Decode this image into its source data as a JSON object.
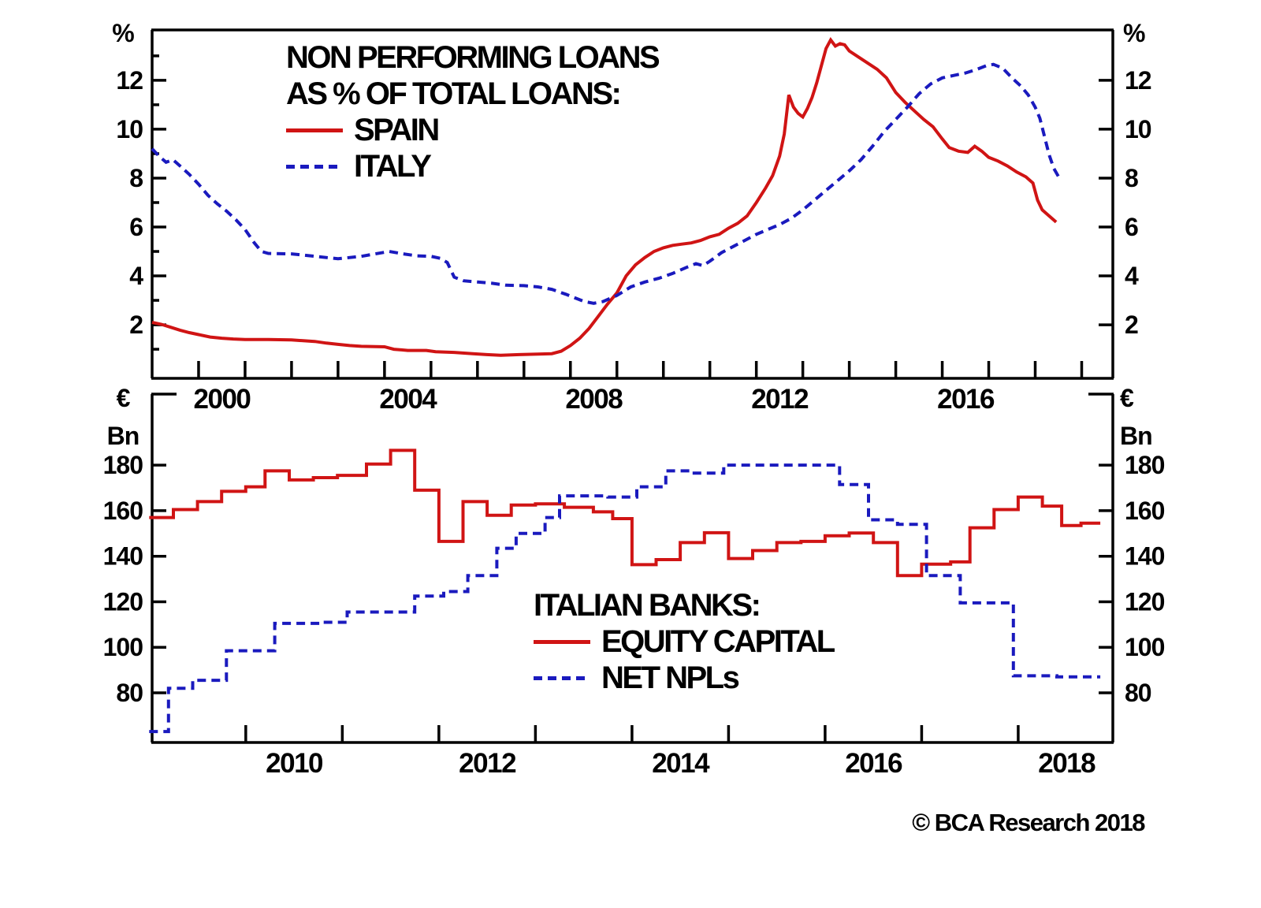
{
  "footer": {
    "copyright": "© BCA Research 2018"
  },
  "units": {
    "percent_left": "%",
    "percent_right": "%",
    "euro": "€",
    "bn": "Bn"
  },
  "colors": {
    "spain": "#d01414",
    "italy": "#1a1abe",
    "equity": "#d01414",
    "npl": "#1a1abe",
    "axis": "#000000"
  },
  "chart_data": [
    {
      "type": "line",
      "panel": "top",
      "title_lines": [
        "NON PERFORMING LOANS",
        "AS % OF TOTAL LOANS:"
      ],
      "ylabel_left": "%",
      "ylabel_right": "%",
      "x_range": [
        1999.0,
        2019.67
      ],
      "y_range": [
        -0.19,
        14.06
      ],
      "y_ticks_major": [
        2,
        4,
        6,
        8,
        10,
        12
      ],
      "y_ticks_minor": [
        1,
        3,
        5,
        7,
        9,
        11,
        13
      ],
      "x_ticks_start": 2000,
      "x_ticks_end": 2019,
      "x_label_years": [
        2000,
        2004,
        2008,
        2012,
        2016
      ],
      "legend_position": "top-left-inside",
      "grid": false,
      "series": [
        {
          "name": "SPAIN",
          "style": "solid",
          "color": "#d01414",
          "points": [
            [
              1999.0,
              2.1
            ],
            [
              1999.2,
              2.02
            ],
            [
              1999.4,
              1.9
            ],
            [
              1999.6,
              1.78
            ],
            [
              1999.8,
              1.68
            ],
            [
              2000.0,
              1.6
            ],
            [
              2000.25,
              1.5
            ],
            [
              2000.5,
              1.45
            ],
            [
              2000.75,
              1.42
            ],
            [
              2001.0,
              1.4
            ],
            [
              2001.5,
              1.4
            ],
            [
              2002.0,
              1.38
            ],
            [
              2002.5,
              1.32
            ],
            [
              2002.75,
              1.25
            ],
            [
              2003.0,
              1.2
            ],
            [
              2003.25,
              1.15
            ],
            [
              2003.5,
              1.12
            ],
            [
              2004.0,
              1.1
            ],
            [
              2004.2,
              1.0
            ],
            [
              2004.5,
              0.95
            ],
            [
              2004.9,
              0.95
            ],
            [
              2005.1,
              0.9
            ],
            [
              2005.5,
              0.87
            ],
            [
              2005.9,
              0.82
            ],
            [
              2006.2,
              0.78
            ],
            [
              2006.5,
              0.75
            ],
            [
              2006.9,
              0.78
            ],
            [
              2007.3,
              0.8
            ],
            [
              2007.6,
              0.82
            ],
            [
              2007.8,
              0.92
            ],
            [
              2008.0,
              1.15
            ],
            [
              2008.2,
              1.45
            ],
            [
              2008.4,
              1.85
            ],
            [
              2008.6,
              2.35
            ],
            [
              2008.8,
              2.85
            ],
            [
              2009.0,
              3.3
            ],
            [
              2009.2,
              4.0
            ],
            [
              2009.4,
              4.45
            ],
            [
              2009.6,
              4.75
            ],
            [
              2009.8,
              5.0
            ],
            [
              2010.0,
              5.15
            ],
            [
              2010.2,
              5.25
            ],
            [
              2010.4,
              5.3
            ],
            [
              2010.6,
              5.35
            ],
            [
              2010.8,
              5.45
            ],
            [
              2011.0,
              5.6
            ],
            [
              2011.2,
              5.7
            ],
            [
              2011.4,
              5.95
            ],
            [
              2011.6,
              6.15
            ],
            [
              2011.8,
              6.45
            ],
            [
              2012.0,
              7.0
            ],
            [
              2012.2,
              7.6
            ],
            [
              2012.35,
              8.1
            ],
            [
              2012.5,
              8.9
            ],
            [
              2012.6,
              9.8
            ],
            [
              2012.7,
              11.4
            ],
            [
              2012.8,
              10.9
            ],
            [
              2012.9,
              10.65
            ],
            [
              2013.0,
              10.5
            ],
            [
              2013.1,
              10.85
            ],
            [
              2013.2,
              11.3
            ],
            [
              2013.3,
              11.9
            ],
            [
              2013.4,
              12.6
            ],
            [
              2013.5,
              13.3
            ],
            [
              2013.6,
              13.65
            ],
            [
              2013.7,
              13.4
            ],
            [
              2013.8,
              13.5
            ],
            [
              2013.9,
              13.45
            ],
            [
              2014.0,
              13.2
            ],
            [
              2014.2,
              12.95
            ],
            [
              2014.4,
              12.7
            ],
            [
              2014.6,
              12.45
            ],
            [
              2014.8,
              12.1
            ],
            [
              2015.0,
              11.5
            ],
            [
              2015.2,
              11.1
            ],
            [
              2015.4,
              10.75
            ],
            [
              2015.6,
              10.4
            ],
            [
              2015.8,
              10.1
            ],
            [
              2016.0,
              9.6
            ],
            [
              2016.15,
              9.25
            ],
            [
              2016.35,
              9.1
            ],
            [
              2016.55,
              9.05
            ],
            [
              2016.7,
              9.3
            ],
            [
              2016.85,
              9.1
            ],
            [
              2017.0,
              8.85
            ],
            [
              2017.2,
              8.7
            ],
            [
              2017.4,
              8.5
            ],
            [
              2017.6,
              8.25
            ],
            [
              2017.8,
              8.05
            ],
            [
              2017.95,
              7.8
            ],
            [
              2018.05,
              7.1
            ],
            [
              2018.15,
              6.7
            ],
            [
              2018.3,
              6.45
            ],
            [
              2018.45,
              6.2
            ]
          ]
        },
        {
          "name": "ITALY",
          "style": "dashed",
          "color": "#1a1abe",
          "points": [
            [
              1999.0,
              9.2
            ],
            [
              1999.15,
              8.9
            ],
            [
              1999.3,
              8.65
            ],
            [
              1999.45,
              8.75
            ],
            [
              1999.6,
              8.5
            ],
            [
              1999.8,
              8.15
            ],
            [
              2000.0,
              7.75
            ],
            [
              2000.2,
              7.3
            ],
            [
              2000.4,
              6.95
            ],
            [
              2000.6,
              6.65
            ],
            [
              2000.8,
              6.3
            ],
            [
              2001.0,
              5.9
            ],
            [
              2001.2,
              5.35
            ],
            [
              2001.35,
              5.0
            ],
            [
              2001.5,
              4.92
            ],
            [
              2002.0,
              4.9
            ],
            [
              2002.5,
              4.8
            ],
            [
              2003.0,
              4.7
            ],
            [
              2003.5,
              4.8
            ],
            [
              2003.8,
              4.9
            ],
            [
              2004.1,
              5.0
            ],
            [
              2004.4,
              4.9
            ],
            [
              2004.7,
              4.82
            ],
            [
              2005.0,
              4.8
            ],
            [
              2005.2,
              4.72
            ],
            [
              2005.35,
              4.55
            ],
            [
              2005.5,
              3.95
            ],
            [
              2005.7,
              3.8
            ],
            [
              2006.0,
              3.75
            ],
            [
              2006.3,
              3.7
            ],
            [
              2006.6,
              3.62
            ],
            [
              2007.0,
              3.6
            ],
            [
              2007.3,
              3.55
            ],
            [
              2007.6,
              3.45
            ],
            [
              2007.9,
              3.25
            ],
            [
              2008.1,
              3.1
            ],
            [
              2008.3,
              2.95
            ],
            [
              2008.5,
              2.88
            ],
            [
              2008.7,
              2.95
            ],
            [
              2009.0,
              3.2
            ],
            [
              2009.3,
              3.55
            ],
            [
              2009.6,
              3.75
            ],
            [
              2009.9,
              3.9
            ],
            [
              2010.2,
              4.1
            ],
            [
              2010.5,
              4.35
            ],
            [
              2010.7,
              4.5
            ],
            [
              2010.85,
              4.42
            ],
            [
              2011.0,
              4.6
            ],
            [
              2011.25,
              4.95
            ],
            [
              2011.5,
              5.2
            ],
            [
              2011.75,
              5.45
            ],
            [
              2012.0,
              5.7
            ],
            [
              2012.25,
              5.9
            ],
            [
              2012.5,
              6.1
            ],
            [
              2012.75,
              6.35
            ],
            [
              2013.0,
              6.7
            ],
            [
              2013.25,
              7.1
            ],
            [
              2013.5,
              7.5
            ],
            [
              2013.75,
              7.9
            ],
            [
              2014.0,
              8.3
            ],
            [
              2014.25,
              8.75
            ],
            [
              2014.5,
              9.3
            ],
            [
              2014.75,
              9.9
            ],
            [
              2015.0,
              10.4
            ],
            [
              2015.25,
              10.9
            ],
            [
              2015.5,
              11.45
            ],
            [
              2015.75,
              11.85
            ],
            [
              2016.0,
              12.1
            ],
            [
              2016.25,
              12.2
            ],
            [
              2016.5,
              12.3
            ],
            [
              2016.75,
              12.45
            ],
            [
              2016.95,
              12.6
            ],
            [
              2017.1,
              12.65
            ],
            [
              2017.3,
              12.5
            ],
            [
              2017.5,
              12.1
            ],
            [
              2017.7,
              11.75
            ],
            [
              2017.85,
              11.4
            ],
            [
              2018.0,
              10.9
            ],
            [
              2018.1,
              10.45
            ],
            [
              2018.2,
              9.7
            ],
            [
              2018.3,
              8.95
            ],
            [
              2018.4,
              8.4
            ],
            [
              2018.55,
              7.9
            ]
          ]
        }
      ]
    },
    {
      "type": "step-line",
      "panel": "bottom",
      "title": "ITALIAN BANKS:",
      "ylabel_left": "€ Bn",
      "ylabel_right": "€ Bn",
      "x_range": [
        2009.03,
        2018.98
      ],
      "y_range": [
        58.2,
        211.2
      ],
      "y_ticks_major": [
        80,
        100,
        120,
        140,
        160,
        180
      ],
      "y_ticks_minor": [],
      "x_ticks_start": 2010,
      "x_ticks_end": 2018,
      "x_label_years": [
        2010,
        2012,
        2014,
        2016,
        2018
      ],
      "legend_position": "bottom-middle-inside",
      "grid": false,
      "x_end": 2018.85,
      "series": [
        {
          "name": "EQUITY CAPITAL",
          "style": "solid",
          "color": "#d01414",
          "steps": [
            [
              2009.0,
              157
            ],
            [
              2009.25,
              160.5
            ],
            [
              2009.5,
              164
            ],
            [
              2009.75,
              168.5
            ],
            [
              2010.0,
              170.5
            ],
            [
              2010.2,
              177.5
            ],
            [
              2010.45,
              173.5
            ],
            [
              2010.7,
              174.5
            ],
            [
              2010.95,
              175.5
            ],
            [
              2011.25,
              180.5
            ],
            [
              2011.5,
              186.5
            ],
            [
              2011.75,
              169
            ],
            [
              2012.0,
              146.5
            ],
            [
              2012.25,
              164
            ],
            [
              2012.5,
              158
            ],
            [
              2012.75,
              162.5
            ],
            [
              2013.0,
              163
            ],
            [
              2013.3,
              161.5
            ],
            [
              2013.6,
              159.5
            ],
            [
              2013.8,
              156.5
            ],
            [
              2014.0,
              136.3
            ],
            [
              2014.25,
              138.5
            ],
            [
              2014.5,
              146
            ],
            [
              2014.75,
              150.3
            ],
            [
              2015.0,
              139
            ],
            [
              2015.25,
              142.5
            ],
            [
              2015.5,
              146
            ],
            [
              2015.75,
              146.5
            ],
            [
              2016.0,
              149
            ],
            [
              2016.25,
              150.2
            ],
            [
              2016.5,
              146
            ],
            [
              2016.75,
              131.5
            ],
            [
              2017.0,
              136.5
            ],
            [
              2017.3,
              137.5
            ],
            [
              2017.5,
              152.5
            ],
            [
              2017.75,
              160.5
            ],
            [
              2018.0,
              166
            ],
            [
              2018.25,
              162
            ],
            [
              2018.45,
              153.5
            ],
            [
              2018.65,
              154.5
            ]
          ]
        },
        {
          "name": "NET NPLs",
          "style": "dashed",
          "color": "#1a1abe",
          "steps": [
            [
              2009.0,
              63
            ],
            [
              2009.2,
              82
            ],
            [
              2009.45,
              85.5
            ],
            [
              2009.8,
              98.5
            ],
            [
              2010.3,
              110.5
            ],
            [
              2010.8,
              111
            ],
            [
              2011.05,
              115.5
            ],
            [
              2011.75,
              122.5
            ],
            [
              2012.05,
              124.5
            ],
            [
              2012.3,
              131.5
            ],
            [
              2012.6,
              143.5
            ],
            [
              2012.8,
              150
            ],
            [
              2013.1,
              157
            ],
            [
              2013.25,
              166.5
            ],
            [
              2013.75,
              166
            ],
            [
              2014.05,
              170.5
            ],
            [
              2014.35,
              177.5
            ],
            [
              2014.6,
              176.5
            ],
            [
              2014.95,
              180
            ],
            [
              2016.15,
              171.5
            ],
            [
              2016.45,
              156
            ],
            [
              2016.75,
              154
            ],
            [
              2017.05,
              131.5
            ],
            [
              2017.4,
              119.5
            ],
            [
              2017.95,
              87.5
            ],
            [
              2018.4,
              87
            ]
          ]
        }
      ]
    }
  ]
}
